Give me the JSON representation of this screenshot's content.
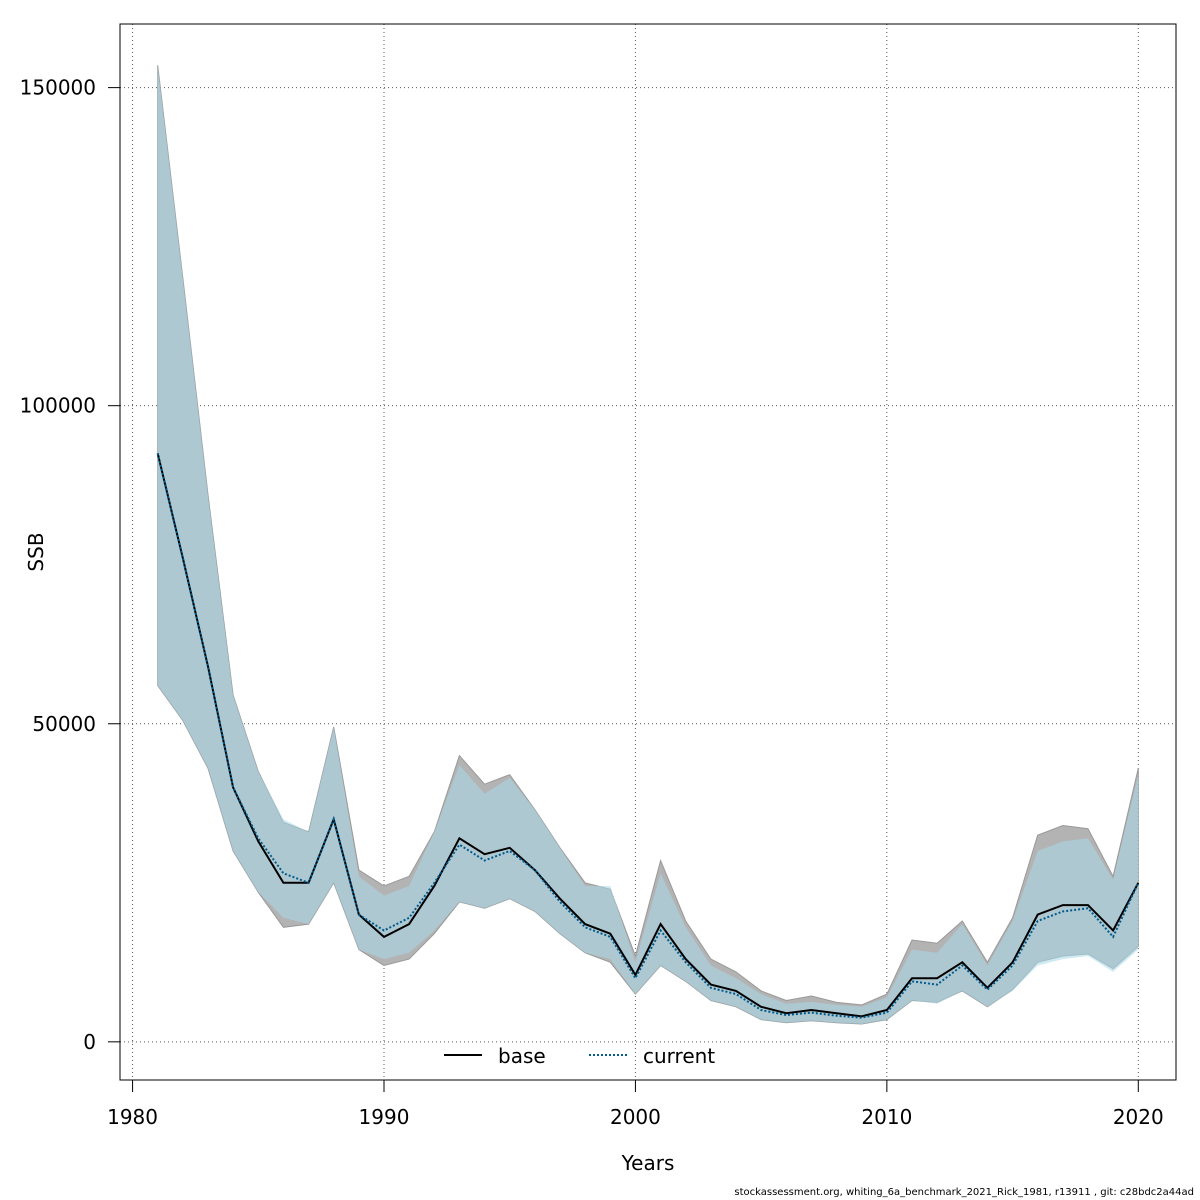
{
  "chart_data": {
    "type": "area",
    "xlabel": "Years",
    "ylabel": "SSB",
    "xlim": [
      1979.5,
      2021.5
    ],
    "ylim": [
      -6000,
      160000
    ],
    "x_ticks": [
      1980,
      1990,
      2000,
      2010,
      2020
    ],
    "y_ticks": [
      0,
      50000,
      100000,
      150000
    ],
    "x_tick_labels": [
      "1980",
      "1990",
      "2000",
      "2010",
      "2020"
    ],
    "y_tick_labels": [
      "0",
      "50000",
      "100000",
      "150000"
    ],
    "grid": true,
    "legend_position": "bottom",
    "x": [
      1981,
      1982,
      1983,
      1984,
      1985,
      1986,
      1987,
      1988,
      1989,
      1990,
      1991,
      1992,
      1993,
      1994,
      1995,
      1996,
      1997,
      1998,
      1999,
      2000,
      2001,
      2002,
      2003,
      2004,
      2005,
      2006,
      2007,
      2008,
      2009,
      2010,
      2011,
      2012,
      2013,
      2014,
      2015,
      2016,
      2017,
      2018,
      2019,
      2020
    ],
    "series": [
      {
        "name": "base",
        "line_style": "solid",
        "line_color": "#000000",
        "band_color": "#b3b3b3",
        "values": [
          92500,
          76000,
          59000,
          40000,
          31500,
          25000,
          25000,
          35000,
          20000,
          16500,
          18500,
          24500,
          32000,
          29500,
          30500,
          27000,
          22500,
          18500,
          17000,
          10500,
          18500,
          13000,
          9000,
          8000,
          5500,
          4500,
          5000,
          4500,
          4000,
          5000,
          10000,
          10000,
          12500,
          8500,
          12500,
          20000,
          21500,
          21500,
          17500,
          25000
        ],
        "lower": [
          56000,
          50500,
          43000,
          30000,
          23500,
          18000,
          18500,
          25000,
          14500,
          12000,
          13000,
          17000,
          22000,
          21000,
          22500,
          20500,
          17000,
          14000,
          12500,
          7500,
          12000,
          9500,
          6500,
          5500,
          3500,
          3000,
          3300,
          3000,
          2800,
          3500,
          6500,
          6200,
          8000,
          5500,
          8200,
          12500,
          13500,
          13800,
          11500,
          15000
        ],
        "upper": [
          153500,
          120000,
          86000,
          54500,
          42500,
          34500,
          33000,
          49500,
          27000,
          24500,
          26000,
          33000,
          45000,
          40500,
          42000,
          36500,
          30500,
          25000,
          24000,
          13500,
          28500,
          19000,
          13000,
          11000,
          8000,
          6500,
          7200,
          6200,
          5800,
          7500,
          16000,
          15500,
          19000,
          12500,
          19500,
          32500,
          34000,
          33500,
          26000,
          43000
        ]
      },
      {
        "name": "current",
        "line_style": "dotted",
        "line_color": "#005a8c",
        "band_color": "#a8d8ea",
        "values": [
          92500,
          76000,
          59000,
          40000,
          32000,
          26500,
          25000,
          35000,
          20000,
          17500,
          19500,
          25000,
          31000,
          28500,
          30000,
          27000,
          22000,
          18000,
          16500,
          10000,
          17500,
          12500,
          8500,
          7500,
          5000,
          4200,
          4600,
          4100,
          3800,
          4600,
          9500,
          9000,
          12000,
          8200,
          12000,
          19000,
          20500,
          21000,
          16500,
          25000
        ],
        "lower": [
          56000,
          50500,
          43000,
          30000,
          23500,
          19500,
          18500,
          25000,
          14500,
          13000,
          14000,
          17500,
          22000,
          21000,
          22500,
          20500,
          17000,
          14000,
          13000,
          7500,
          12000,
          9500,
          6500,
          5500,
          3500,
          3000,
          3300,
          3000,
          2800,
          3500,
          6500,
          6000,
          8000,
          5500,
          8000,
          12000,
          13000,
          13500,
          11000,
          14500
        ],
        "upper": [
          153500,
          120000,
          86000,
          54500,
          42500,
          35000,
          33000,
          49500,
          26000,
          23000,
          24500,
          33000,
          43500,
          39000,
          41500,
          36500,
          30500,
          24500,
          24500,
          12500,
          26500,
          18000,
          12000,
          10000,
          7500,
          6000,
          6300,
          5800,
          5500,
          7000,
          14500,
          14000,
          18500,
          12000,
          19000,
          30000,
          31500,
          32000,
          25500,
          42000
        ]
      }
    ]
  },
  "legend": {
    "items": [
      {
        "label": "base"
      },
      {
        "label": "current"
      }
    ]
  },
  "footer": {
    "text": "stockassessment.org, whiting_6a_benchmark_2021_Rick_1981, r13911 , git: c28bdc2a44ad"
  }
}
